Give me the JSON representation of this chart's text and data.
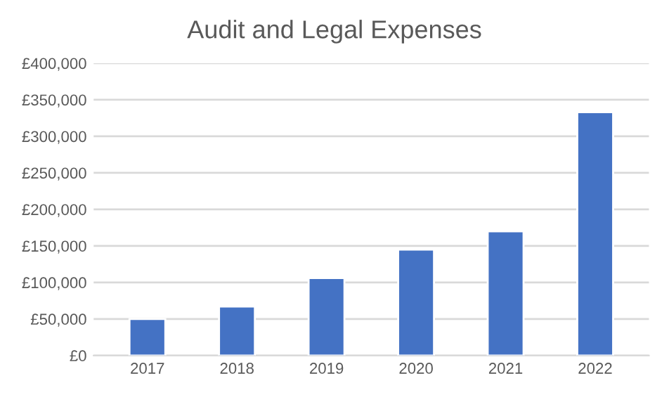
{
  "chart_data": {
    "type": "bar",
    "title": "Audit and Legal Expenses",
    "categories": [
      "2017",
      "2018",
      "2019",
      "2020",
      "2021",
      "2022"
    ],
    "values": [
      50000,
      67000,
      106000,
      145000,
      170000,
      333000
    ],
    "color": "#4472c4",
    "ylim": [
      0,
      400000
    ],
    "yticks": [
      {
        "value": 0,
        "label": "£0"
      },
      {
        "value": 50000,
        "label": "£50,000"
      },
      {
        "value": 100000,
        "label": "£100,000"
      },
      {
        "value": 150000,
        "label": "£150,000"
      },
      {
        "value": 200000,
        "label": "£200,000"
      },
      {
        "value": 250000,
        "label": "£250,000"
      },
      {
        "value": 300000,
        "label": "£300,000"
      },
      {
        "value": 350000,
        "label": "£350,000"
      },
      {
        "value": 400000,
        "label": "£400,000"
      }
    ],
    "grid": "y",
    "legend": false
  }
}
